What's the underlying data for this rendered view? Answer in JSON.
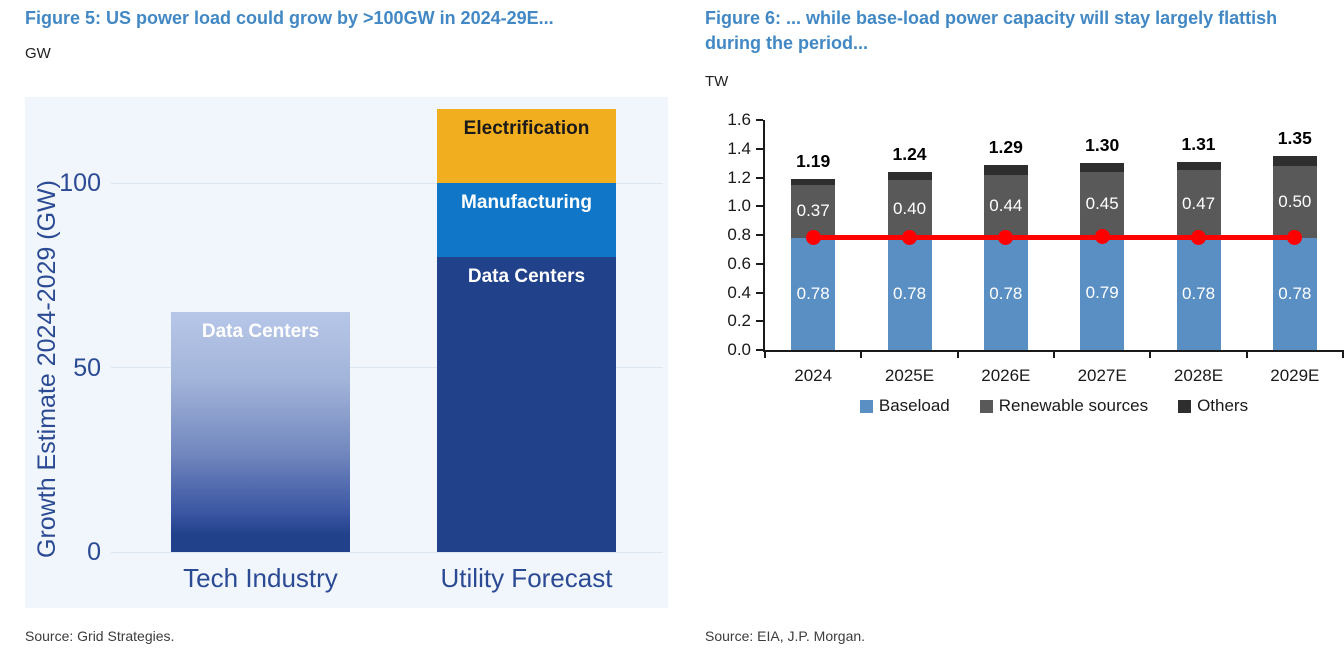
{
  "figure5": {
    "title": "Figure 5: US power load could grow by >100GW in 2024-29E...",
    "unit": "GW",
    "source": "Source: Grid Strategies."
  },
  "figure6": {
    "title_line1": "Figure 6: ... while base-load power capacity will stay largely flattish",
    "title_line2": "during the period...",
    "unit": "TW",
    "source": "Source: EIA, J.P. Morgan."
  },
  "colors": {
    "title_blue": "#4288C4",
    "axis_navy": "#2B4A94",
    "plot_background": "#F0F6FB",
    "data_centers_navy": "#21418A",
    "manufacturing_blue": "#0F76C8",
    "electrification_gold": "#F1AE1E",
    "baseload_blue": "#5A8FC4",
    "renewables_gray": "#595959",
    "others_dark": "#2E2E2E",
    "trend_red": "#FE0000"
  },
  "chart_data": [
    {
      "type": "bar",
      "stacked": true,
      "title": "Figure 5: US power load could grow by >100GW in 2024-29E...",
      "ylabel": "Growth Estimate 2024-2029 (GW)",
      "unit": "GW",
      "ylim": [
        0,
        123
      ],
      "yticks": [
        0,
        50,
        100
      ],
      "grid": true,
      "categories": [
        "Tech Industry",
        "Utility Forecast"
      ],
      "bars": [
        {
          "category": "Tech Industry",
          "segments": [
            {
              "label": "Data Centers",
              "value": 65,
              "fill": "gradient",
              "text": "#FFFFFF"
            }
          ]
        },
        {
          "category": "Utility Forecast",
          "segments": [
            {
              "label": "Data Centers",
              "value": 80,
              "fill": "#21418A",
              "text": "#FFFFFF"
            },
            {
              "label": "Manufacturing",
              "value": 20,
              "fill": "#0F76C8",
              "text": "#FFFFFF"
            },
            {
              "label": "Electrification",
              "value": 20,
              "fill": "#F1AE1E",
              "text": "#1A1A1A"
            }
          ]
        }
      ]
    },
    {
      "type": "bar+line",
      "stacked": true,
      "title": "Figure 6: ... while base-load power capacity will stay largely flattish during the period...",
      "unit": "TW",
      "ylim": [
        0,
        1.6
      ],
      "yticks": [
        0,
        0.2,
        0.4,
        0.6,
        0.8,
        1.0,
        1.2,
        1.4,
        1.6
      ],
      "grid": false,
      "legend_position": "bottom",
      "categories": [
        "2024",
        "2025E",
        "2026E",
        "2027E",
        "2028E",
        "2029E"
      ],
      "series": [
        {
          "name": "Baseload",
          "color": "#5A8FC4",
          "show_labels": true,
          "values": [
            0.78,
            0.78,
            0.78,
            0.79,
            0.78,
            0.78
          ]
        },
        {
          "name": "Renewable sources",
          "color": "#595959",
          "show_labels": true,
          "values": [
            0.37,
            0.4,
            0.44,
            0.45,
            0.47,
            0.5
          ]
        },
        {
          "name": "Others",
          "color": "#2E2E2E",
          "show_labels": false,
          "values": [
            0.04,
            0.06,
            0.07,
            0.06,
            0.06,
            0.07
          ]
        }
      ],
      "totals": [
        1.19,
        1.24,
        1.29,
        1.3,
        1.31,
        1.35
      ],
      "line": {
        "name": "Baseload level",
        "color": "#FE0000",
        "values": [
          0.78,
          0.78,
          0.78,
          0.79,
          0.78,
          0.78
        ]
      }
    }
  ]
}
